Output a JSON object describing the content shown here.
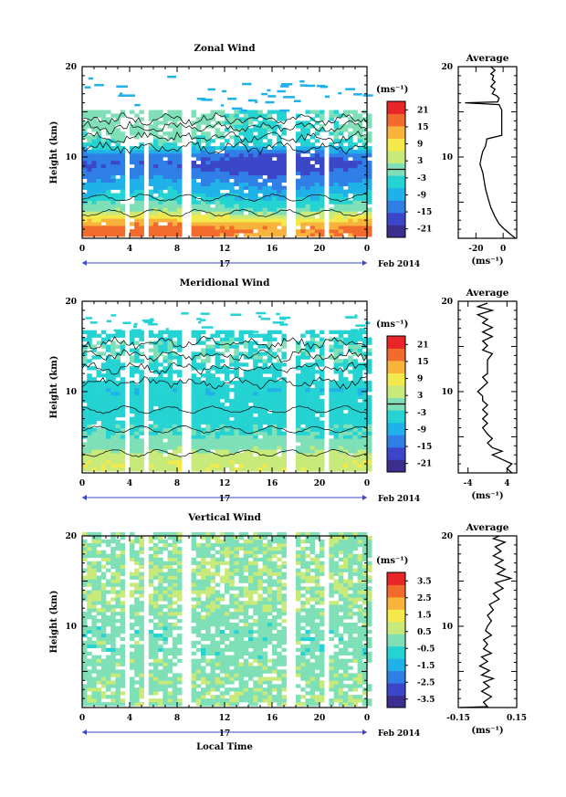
{
  "chart_data": [
    {
      "type": "heatmap",
      "title": "Zonal Wind",
      "ylabel": "Height (km)",
      "xlabel": "",
      "x_ticks": [
        "0",
        "4",
        "8",
        "12",
        "16",
        "20",
        "0"
      ],
      "y_ticks": [
        "10",
        "20"
      ],
      "xlim": [
        0,
        24
      ],
      "ylim": [
        1,
        20
      ],
      "date_label": "17",
      "month_label": "Feb 2014",
      "colorbar": {
        "unit": "(ms⁻¹)",
        "ticks": [
          "21",
          "15",
          "9",
          "3",
          "-3",
          "-9",
          "-15",
          "-21"
        ],
        "range": [
          -24,
          24
        ],
        "zero_line": true
      },
      "data_gaps_hours": [
        [
          3.6,
          3.9
        ],
        [
          5.3,
          5.8
        ],
        [
          8.4,
          8.7
        ],
        [
          9.0,
          9.3
        ],
        [
          17.1,
          17.8
        ],
        [
          19.8,
          20.0
        ],
        [
          20.5,
          20.8
        ]
      ],
      "profile_by_height": [
        {
          "height": 2,
          "value": 16
        },
        {
          "height": 3,
          "value": 9
        },
        {
          "height": 4,
          "value": 0
        },
        {
          "height": 5,
          "value": -4
        },
        {
          "height": 6,
          "value": -8
        },
        {
          "height": 7,
          "value": -11
        },
        {
          "height": 8,
          "value": -14
        },
        {
          "height": 9,
          "value": -17
        },
        {
          "height": 10,
          "value": -14
        },
        {
          "height": 11,
          "value": -5
        },
        {
          "height": 12,
          "value": -2
        },
        {
          "height": 13,
          "value": -1
        },
        {
          "height": 14,
          "value": -1
        },
        {
          "height": 15,
          "value": -1
        },
        {
          "height": 16,
          "value": -3
        },
        {
          "height": 17,
          "value": -7
        },
        {
          "height": 18,
          "value": -9
        }
      ],
      "average": {
        "title": "Average",
        "xlabel": "(ms⁻¹)",
        "x_ticks": [
          "-20",
          "0"
        ],
        "x_tick_values": [
          -20,
          0
        ],
        "xlim": [
          -33,
          10
        ],
        "y_ticks": [
          "10",
          "20"
        ],
        "ylim": [
          1,
          20
        ],
        "points": [
          [
            9,
            1
          ],
          [
            5,
            1.5
          ],
          [
            1,
            2
          ],
          [
            -3,
            2.6
          ],
          [
            -6,
            3.4
          ],
          [
            -9,
            4.4
          ],
          [
            -11,
            5.4
          ],
          [
            -13,
            6.5
          ],
          [
            -14,
            7.4
          ],
          [
            -15,
            8.3
          ],
          [
            -17,
            9.2
          ],
          [
            -16,
            10
          ],
          [
            -15,
            10.6
          ],
          [
            -13,
            11.2
          ],
          [
            -12,
            12
          ],
          [
            -1,
            12.4
          ],
          [
            -1,
            13.5
          ],
          [
            -1,
            14.8
          ],
          [
            -1,
            15.2
          ],
          [
            -2,
            15.5
          ],
          [
            -3,
            15.8
          ],
          [
            -28,
            16.0
          ],
          [
            -4,
            16.1
          ],
          [
            -3,
            16.5
          ],
          [
            -5,
            16.8
          ],
          [
            -8,
            17
          ],
          [
            -6,
            17.5
          ],
          [
            -9,
            17.8
          ],
          [
            -6,
            18.3
          ],
          [
            -8,
            18.6
          ],
          [
            -7,
            19
          ],
          [
            -9,
            19.2
          ],
          [
            -6,
            19.6
          ],
          [
            -9,
            20
          ]
        ]
      }
    },
    {
      "type": "heatmap",
      "title": "Meridional Wind",
      "ylabel": "Height (km)",
      "xlabel": "",
      "x_ticks": [
        "0",
        "4",
        "8",
        "12",
        "16",
        "20",
        "0"
      ],
      "y_ticks": [
        "10",
        "20"
      ],
      "xlim": [
        0,
        24
      ],
      "ylim": [
        1,
        20
      ],
      "date_label": "17",
      "month_label": "Feb 2014",
      "colorbar": {
        "unit": "(ms⁻¹)",
        "ticks": [
          "21",
          "15",
          "9",
          "3",
          "-3",
          "-9",
          "-15",
          "-21"
        ],
        "range": [
          -24,
          24
        ],
        "zero_line": true
      },
      "data_gaps_hours": [
        [
          3.6,
          3.9
        ],
        [
          5.3,
          5.8
        ],
        [
          8.4,
          8.7
        ],
        [
          9.0,
          9.3
        ],
        [
          17.1,
          17.8
        ],
        [
          19.8,
          20.0
        ],
        [
          20.5,
          20.8
        ]
      ],
      "profile_by_height": [
        {
          "height": 2,
          "value": 6
        },
        {
          "height": 3,
          "value": 3
        },
        {
          "height": 4,
          "value": 0
        },
        {
          "height": 5,
          "value": -2
        },
        {
          "height": 6,
          "value": -3
        },
        {
          "height": 7,
          "value": -4
        },
        {
          "height": 8,
          "value": -4
        },
        {
          "height": 9,
          "value": -5
        },
        {
          "height": 10,
          "value": -6
        },
        {
          "height": 11,
          "value": -4
        },
        {
          "height": 12,
          "value": -5
        },
        {
          "height": 13,
          "value": -3
        },
        {
          "height": 14,
          "value": -2
        },
        {
          "height": 15,
          "value": -2
        },
        {
          "height": 16,
          "value": -4
        },
        {
          "height": 17,
          "value": -5
        },
        {
          "height": 18,
          "value": -4
        }
      ],
      "average": {
        "title": "Average",
        "xlabel": "(ms⁻¹)",
        "x_ticks": [
          "-4",
          "4"
        ],
        "x_tick_values": [
          -4,
          4
        ],
        "xlim": [
          -6,
          6
        ],
        "y_ticks": [
          "10",
          "20"
        ],
        "ylim": [
          1,
          20
        ],
        "points": [
          [
            5,
            1
          ],
          [
            4,
            1.5
          ],
          [
            5,
            2
          ],
          [
            3,
            2.5
          ],
          [
            1,
            3
          ],
          [
            3,
            3.4
          ],
          [
            1,
            3.8
          ],
          [
            0,
            4.3
          ],
          [
            1,
            4.8
          ],
          [
            0,
            5.3
          ],
          [
            -1,
            6
          ],
          [
            0,
            6.5
          ],
          [
            -1,
            7
          ],
          [
            0,
            7.5
          ],
          [
            -1,
            8
          ],
          [
            0,
            8.5
          ],
          [
            -1,
            9
          ],
          [
            -1,
            9.5
          ],
          [
            -2,
            10
          ],
          [
            -1,
            10.5
          ],
          [
            0,
            11
          ],
          [
            -1,
            11.6
          ],
          [
            0,
            12
          ],
          [
            0,
            12.5
          ],
          [
            0,
            13.5
          ],
          [
            1,
            14.2
          ],
          [
            -1,
            14.6
          ],
          [
            0,
            15.1
          ],
          [
            -1,
            15.6
          ],
          [
            1,
            16.1
          ],
          [
            -1,
            16.6
          ],
          [
            1,
            17.1
          ],
          [
            -1,
            17.6
          ],
          [
            0,
            18
          ],
          [
            -2,
            18.5
          ],
          [
            1,
            19
          ],
          [
            -2,
            19.4
          ],
          [
            0,
            19.8
          ]
        ]
      }
    },
    {
      "type": "heatmap",
      "title": "Vertical Wind",
      "ylabel": "Height (km)",
      "xlabel": "Local Time",
      "x_ticks": [
        "0",
        "4",
        "8",
        "12",
        "16",
        "20",
        "0"
      ],
      "y_ticks": [
        "10",
        "20"
      ],
      "xlim": [
        0,
        24
      ],
      "ylim": [
        1,
        20
      ],
      "date_label": "17",
      "month_label": "Feb 2014",
      "colorbar": {
        "unit": "(ms⁻¹)",
        "ticks": [
          "3.5",
          "2.5",
          "1.5",
          "0.5",
          "-0.5",
          "-1.5",
          "-2.5",
          "-3.5"
        ],
        "range": [
          -4,
          4
        ],
        "zero_line": false
      },
      "data_gaps_hours": [
        [
          3.6,
          3.9
        ],
        [
          5.3,
          5.8
        ],
        [
          8.4,
          8.7
        ],
        [
          9.0,
          9.3
        ],
        [
          17.1,
          17.8
        ],
        [
          19.8,
          20.0
        ],
        [
          20.5,
          20.8
        ]
      ],
      "profile_by_height": [
        {
          "height": 2,
          "value": 0.3
        },
        {
          "height": 3,
          "value": 0.1
        },
        {
          "height": 4,
          "value": 0.2
        },
        {
          "height": 5,
          "value": 0.0
        },
        {
          "height": 6,
          "value": 0.1
        },
        {
          "height": 7,
          "value": -0.1
        },
        {
          "height": 8,
          "value": 0.0
        },
        {
          "height": 9,
          "value": -0.1
        },
        {
          "height": 10,
          "value": 0.0
        },
        {
          "height": 11,
          "value": 0.1
        },
        {
          "height": 12,
          "value": 0.2
        },
        {
          "height": 13,
          "value": 0.4
        },
        {
          "height": 14,
          "value": 0.3
        },
        {
          "height": 15,
          "value": 0.2
        },
        {
          "height": 16,
          "value": 0.4
        },
        {
          "height": 17,
          "value": 0.3
        },
        {
          "height": 18,
          "value": 0.2
        }
      ],
      "average": {
        "title": "Average",
        "xlabel": "(ms⁻¹)",
        "x_ticks": [
          "-0.15",
          "0.15"
        ],
        "x_tick_values": [
          -0.15,
          0.15
        ],
        "xlim": [
          -0.15,
          0.15
        ],
        "y_ticks": [
          "10",
          "20"
        ],
        "ylim": [
          1,
          20
        ],
        "points": [
          [
            -0.14,
            1
          ],
          [
            0.0,
            1.1
          ],
          [
            -0.02,
            1.6
          ],
          [
            0.02,
            2.2
          ],
          [
            -0.03,
            2.8
          ],
          [
            0.01,
            3.3
          ],
          [
            -0.02,
            3.8
          ],
          [
            0.03,
            4.2
          ],
          [
            -0.03,
            4.6
          ],
          [
            0.01,
            5.1
          ],
          [
            -0.04,
            5.6
          ],
          [
            0.0,
            6.1
          ],
          [
            -0.03,
            6.6
          ],
          [
            0.02,
            7.0
          ],
          [
            -0.02,
            7.5
          ],
          [
            0.0,
            8.0
          ],
          [
            -0.02,
            8.5
          ],
          [
            0.02,
            9.0
          ],
          [
            -0.01,
            9.5
          ],
          [
            0.0,
            10.0
          ],
          [
            0.02,
            10.6
          ],
          [
            0.0,
            11.2
          ],
          [
            0.03,
            11.8
          ],
          [
            0.01,
            12.4
          ],
          [
            0.06,
            13.0
          ],
          [
            0.03,
            13.6
          ],
          [
            0.08,
            14.2
          ],
          [
            0.04,
            14.8
          ],
          [
            0.12,
            15.3
          ],
          [
            0.05,
            15.8
          ],
          [
            0.09,
            16.3
          ],
          [
            0.04,
            16.8
          ],
          [
            0.08,
            17.3
          ],
          [
            0.03,
            17.8
          ],
          [
            0.07,
            18.3
          ],
          [
            0.04,
            18.8
          ],
          [
            0.09,
            19.3
          ],
          [
            0.03,
            19.7
          ],
          [
            0.06,
            20
          ]
        ]
      }
    }
  ]
}
